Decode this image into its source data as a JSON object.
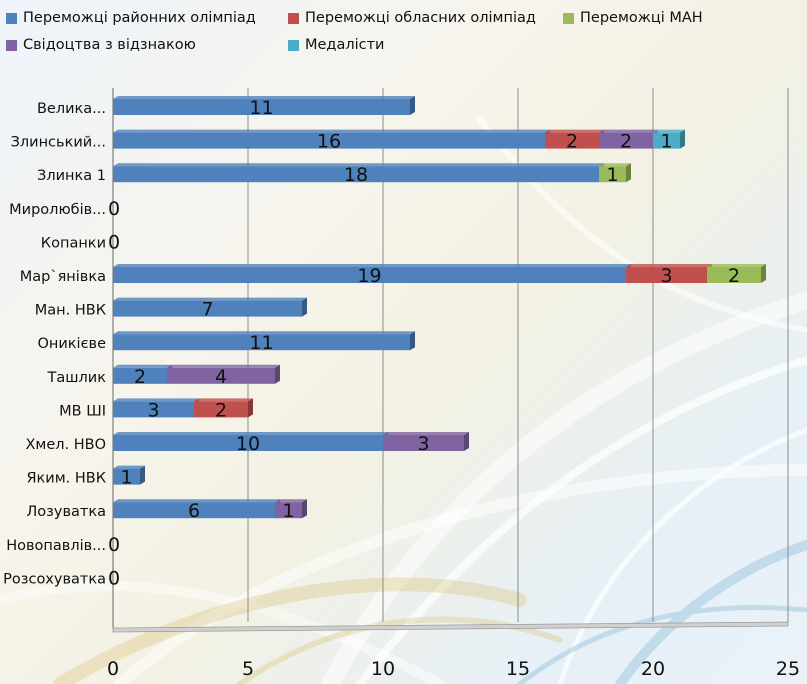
{
  "chart_data": {
    "type": "bar",
    "orientation": "horizontal",
    "stacked": true,
    "categories": [
      "Велика...",
      "Злинський...",
      "Злинка 1",
      "Миролюбів...",
      "Копанки",
      "Мар`янівка",
      "Ман. НВК",
      "Оникієве",
      "Ташлик",
      "МВ ШІ",
      "Хмел. НВО",
      "Яким. НВК",
      "Лозуватка",
      "Новопавлів...",
      "Розсохуватка"
    ],
    "series": [
      {
        "name": "Переможці районних олімпіад",
        "color": "#4f81bd",
        "values": [
          11,
          16,
          18,
          0,
          0,
          19,
          7,
          11,
          2,
          3,
          10,
          1,
          6,
          0,
          0
        ]
      },
      {
        "name": "Переможці обласних олімпіад",
        "color": "#c0504d",
        "values": [
          0,
          2,
          0,
          0,
          0,
          3,
          0,
          0,
          0,
          2,
          0,
          0,
          0,
          0,
          0
        ]
      },
      {
        "name": "Переможці МАН",
        "color": "#9bbb59",
        "values": [
          0,
          0,
          1,
          0,
          0,
          2,
          0,
          0,
          0,
          0,
          0,
          0,
          0,
          0,
          0
        ]
      },
      {
        "name": "Свідоцтва з відзнакою",
        "color": "#8064a2",
        "values": [
          0,
          2,
          0,
          0,
          0,
          0,
          0,
          0,
          4,
          0,
          3,
          0,
          1,
          0,
          0
        ]
      },
      {
        "name": "Медалісти",
        "color": "#4bacc6",
        "values": [
          0,
          1,
          0,
          0,
          0,
          0,
          0,
          0,
          0,
          0,
          0,
          0,
          0,
          0,
          0
        ]
      }
    ],
    "xlim": [
      0,
      25
    ],
    "xticks": [
      "0",
      "5",
      "10",
      "15",
      "20",
      "25"
    ],
    "grid": true,
    "legend_position": "top",
    "zero_label_categories": [
      "Миролюбів...",
      "Копанки",
      "Новопавлів...",
      "Розсохуватка"
    ],
    "zero_label": "0"
  }
}
